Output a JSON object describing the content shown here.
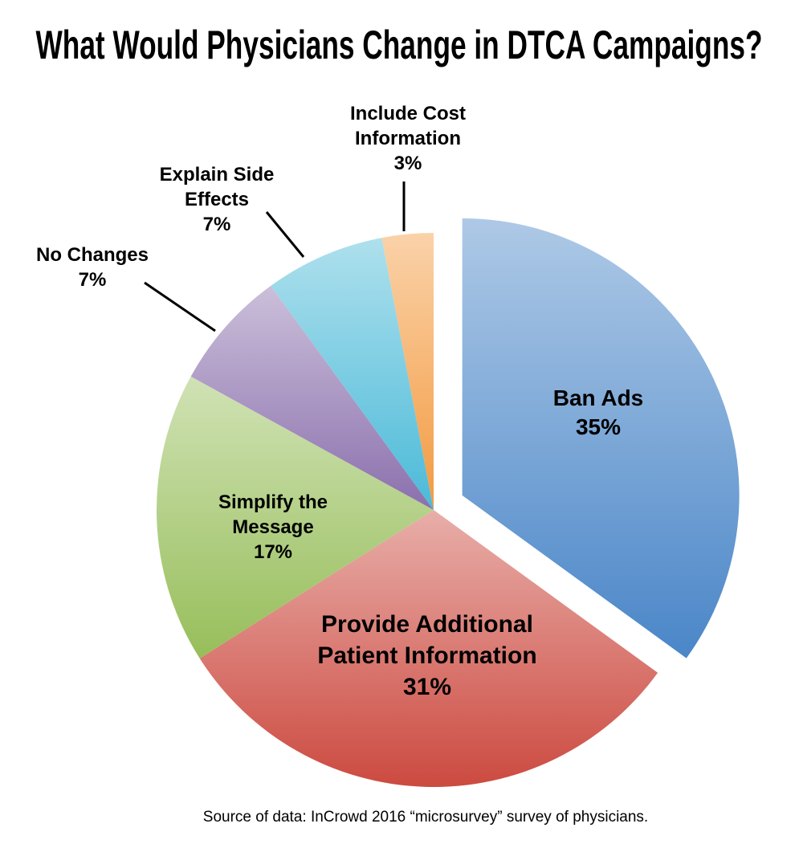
{
  "chart_data": {
    "type": "pie",
    "title": "What Would Physicians Change in DTCA Campaigns?",
    "categories": [
      "Ban Ads",
      "Provide Additional Patient Information",
      "Simplify the Message",
      "No Changes",
      "Explain Side Effects",
      "Include Cost Information"
    ],
    "values": [
      35,
      31,
      17,
      7,
      7,
      3
    ],
    "value_labels": [
      "35%",
      "31%",
      "17%",
      "7%",
      "7%",
      "3%"
    ],
    "colors": [
      "#4a86c8",
      "#cc4a40",
      "#97be5a",
      "#8b70ad",
      "#4bbad8",
      "#f39a40"
    ],
    "source": "Source of data: InCrowd 2016 “microsurvey” survey of physicians."
  }
}
